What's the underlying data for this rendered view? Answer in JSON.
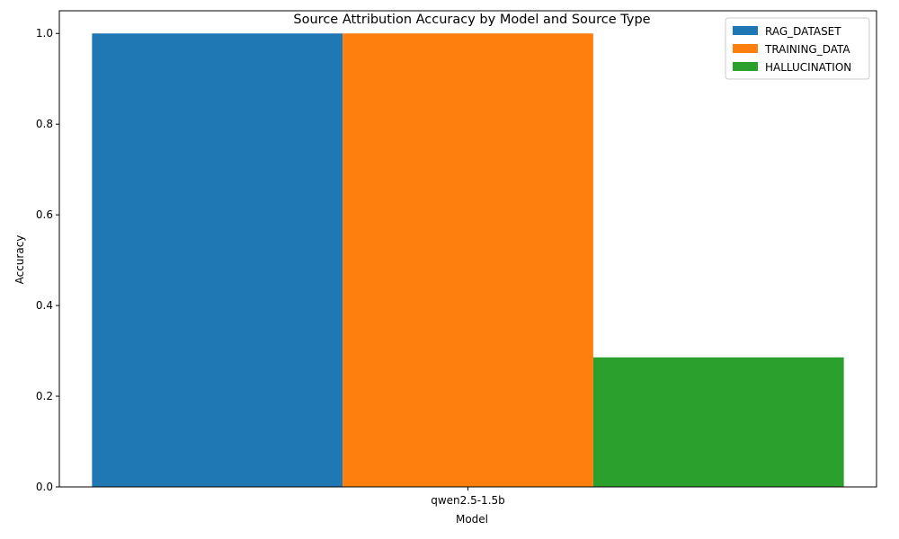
{
  "chart_data": {
    "type": "bar",
    "title": "Source Attribution Accuracy by Model and Source Type",
    "xlabel": "Model",
    "ylabel": "Accuracy",
    "categories": [
      "qwen2.5-1.5b"
    ],
    "ylim": [
      0,
      1.05
    ],
    "yticks": [
      "0.0",
      "0.2",
      "0.4",
      "0.6",
      "0.8",
      "1.0"
    ],
    "ytick_values": [
      0,
      0.2,
      0.4,
      0.6,
      0.8,
      1.0
    ],
    "series": [
      {
        "name": "RAG_DATASET",
        "values": [
          1.0
        ],
        "color": "#1f77b4"
      },
      {
        "name": "TRAINING_DATA",
        "values": [
          1.0
        ],
        "color": "#ff7f0e"
      },
      {
        "name": "HALLUCINATION",
        "values": [
          0.2857
        ],
        "color": "#2ca02c"
      }
    ],
    "grid": false,
    "legend_position": "top-right"
  }
}
